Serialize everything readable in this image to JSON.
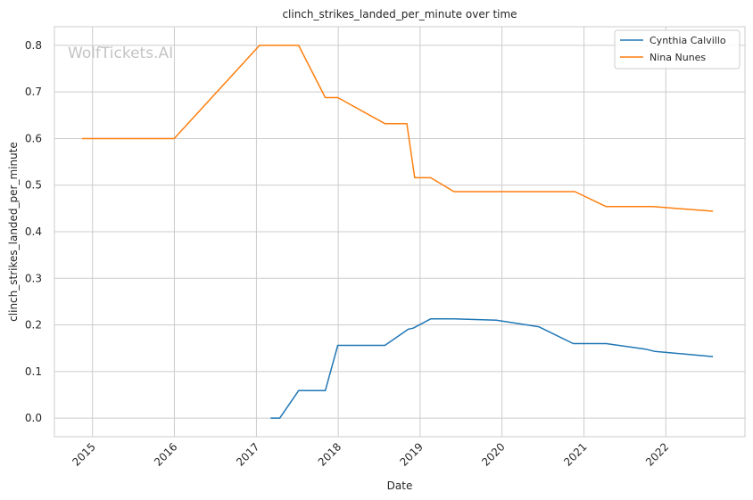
{
  "chart_data": {
    "type": "line",
    "title": "clinch_strikes_landed_per_minute over time",
    "xlabel": "Date",
    "ylabel": "clinch_strikes_landed_per_minute",
    "watermark": "WolfTickets.AI",
    "x_tick_labels": [
      "2015",
      "2016",
      "2017",
      "2018",
      "2019",
      "2020",
      "2021",
      "2022"
    ],
    "y_tick_labels": [
      "0.0",
      "0.1",
      "0.2",
      "0.3",
      "0.4",
      "0.5",
      "0.6",
      "0.7",
      "0.8"
    ],
    "xlim": [
      "2014-07-15",
      "2022-12-20"
    ],
    "ylim": [
      -0.04,
      0.84
    ],
    "grid": true,
    "legend_position": "top-right",
    "series": [
      {
        "name": "Cynthia Calvillo",
        "color": "#1f77b4",
        "points": [
          [
            "2017-03-05",
            0.0
          ],
          [
            "2017-04-15",
            0.0
          ],
          [
            "2017-07-08",
            0.059
          ],
          [
            "2017-11-04",
            0.059
          ],
          [
            "2017-12-30",
            0.156
          ],
          [
            "2018-07-28",
            0.156
          ],
          [
            "2018-11-10",
            0.191
          ],
          [
            "2018-12-01",
            0.193
          ],
          [
            "2019-02-17",
            0.213
          ],
          [
            "2019-06-01",
            0.213
          ],
          [
            "2019-12-07",
            0.21
          ],
          [
            "2020-06-13",
            0.196
          ],
          [
            "2020-11-14",
            0.16
          ],
          [
            "2021-04-10",
            0.16
          ],
          [
            "2021-10-02",
            0.148
          ],
          [
            "2021-11-13",
            0.143
          ],
          [
            "2022-07-30",
            0.132
          ]
        ]
      },
      {
        "name": "Nina Nunes",
        "color": "#ff7f0e",
        "points": [
          [
            "2014-11-15",
            0.6
          ],
          [
            "2015-12-31",
            0.6
          ],
          [
            "2017-01-15",
            0.8
          ],
          [
            "2017-07-08",
            0.8
          ],
          [
            "2017-11-04",
            0.688
          ],
          [
            "2017-12-30",
            0.688
          ],
          [
            "2018-07-28",
            0.632
          ],
          [
            "2018-11-03",
            0.632
          ],
          [
            "2018-12-08",
            0.516
          ],
          [
            "2019-02-17",
            0.516
          ],
          [
            "2019-06-01",
            0.486
          ],
          [
            "2019-11-02",
            0.486
          ],
          [
            "2020-11-21",
            0.486
          ],
          [
            "2021-04-10",
            0.454
          ],
          [
            "2021-11-06",
            0.454
          ],
          [
            "2022-07-30",
            0.444
          ]
        ]
      }
    ]
  }
}
